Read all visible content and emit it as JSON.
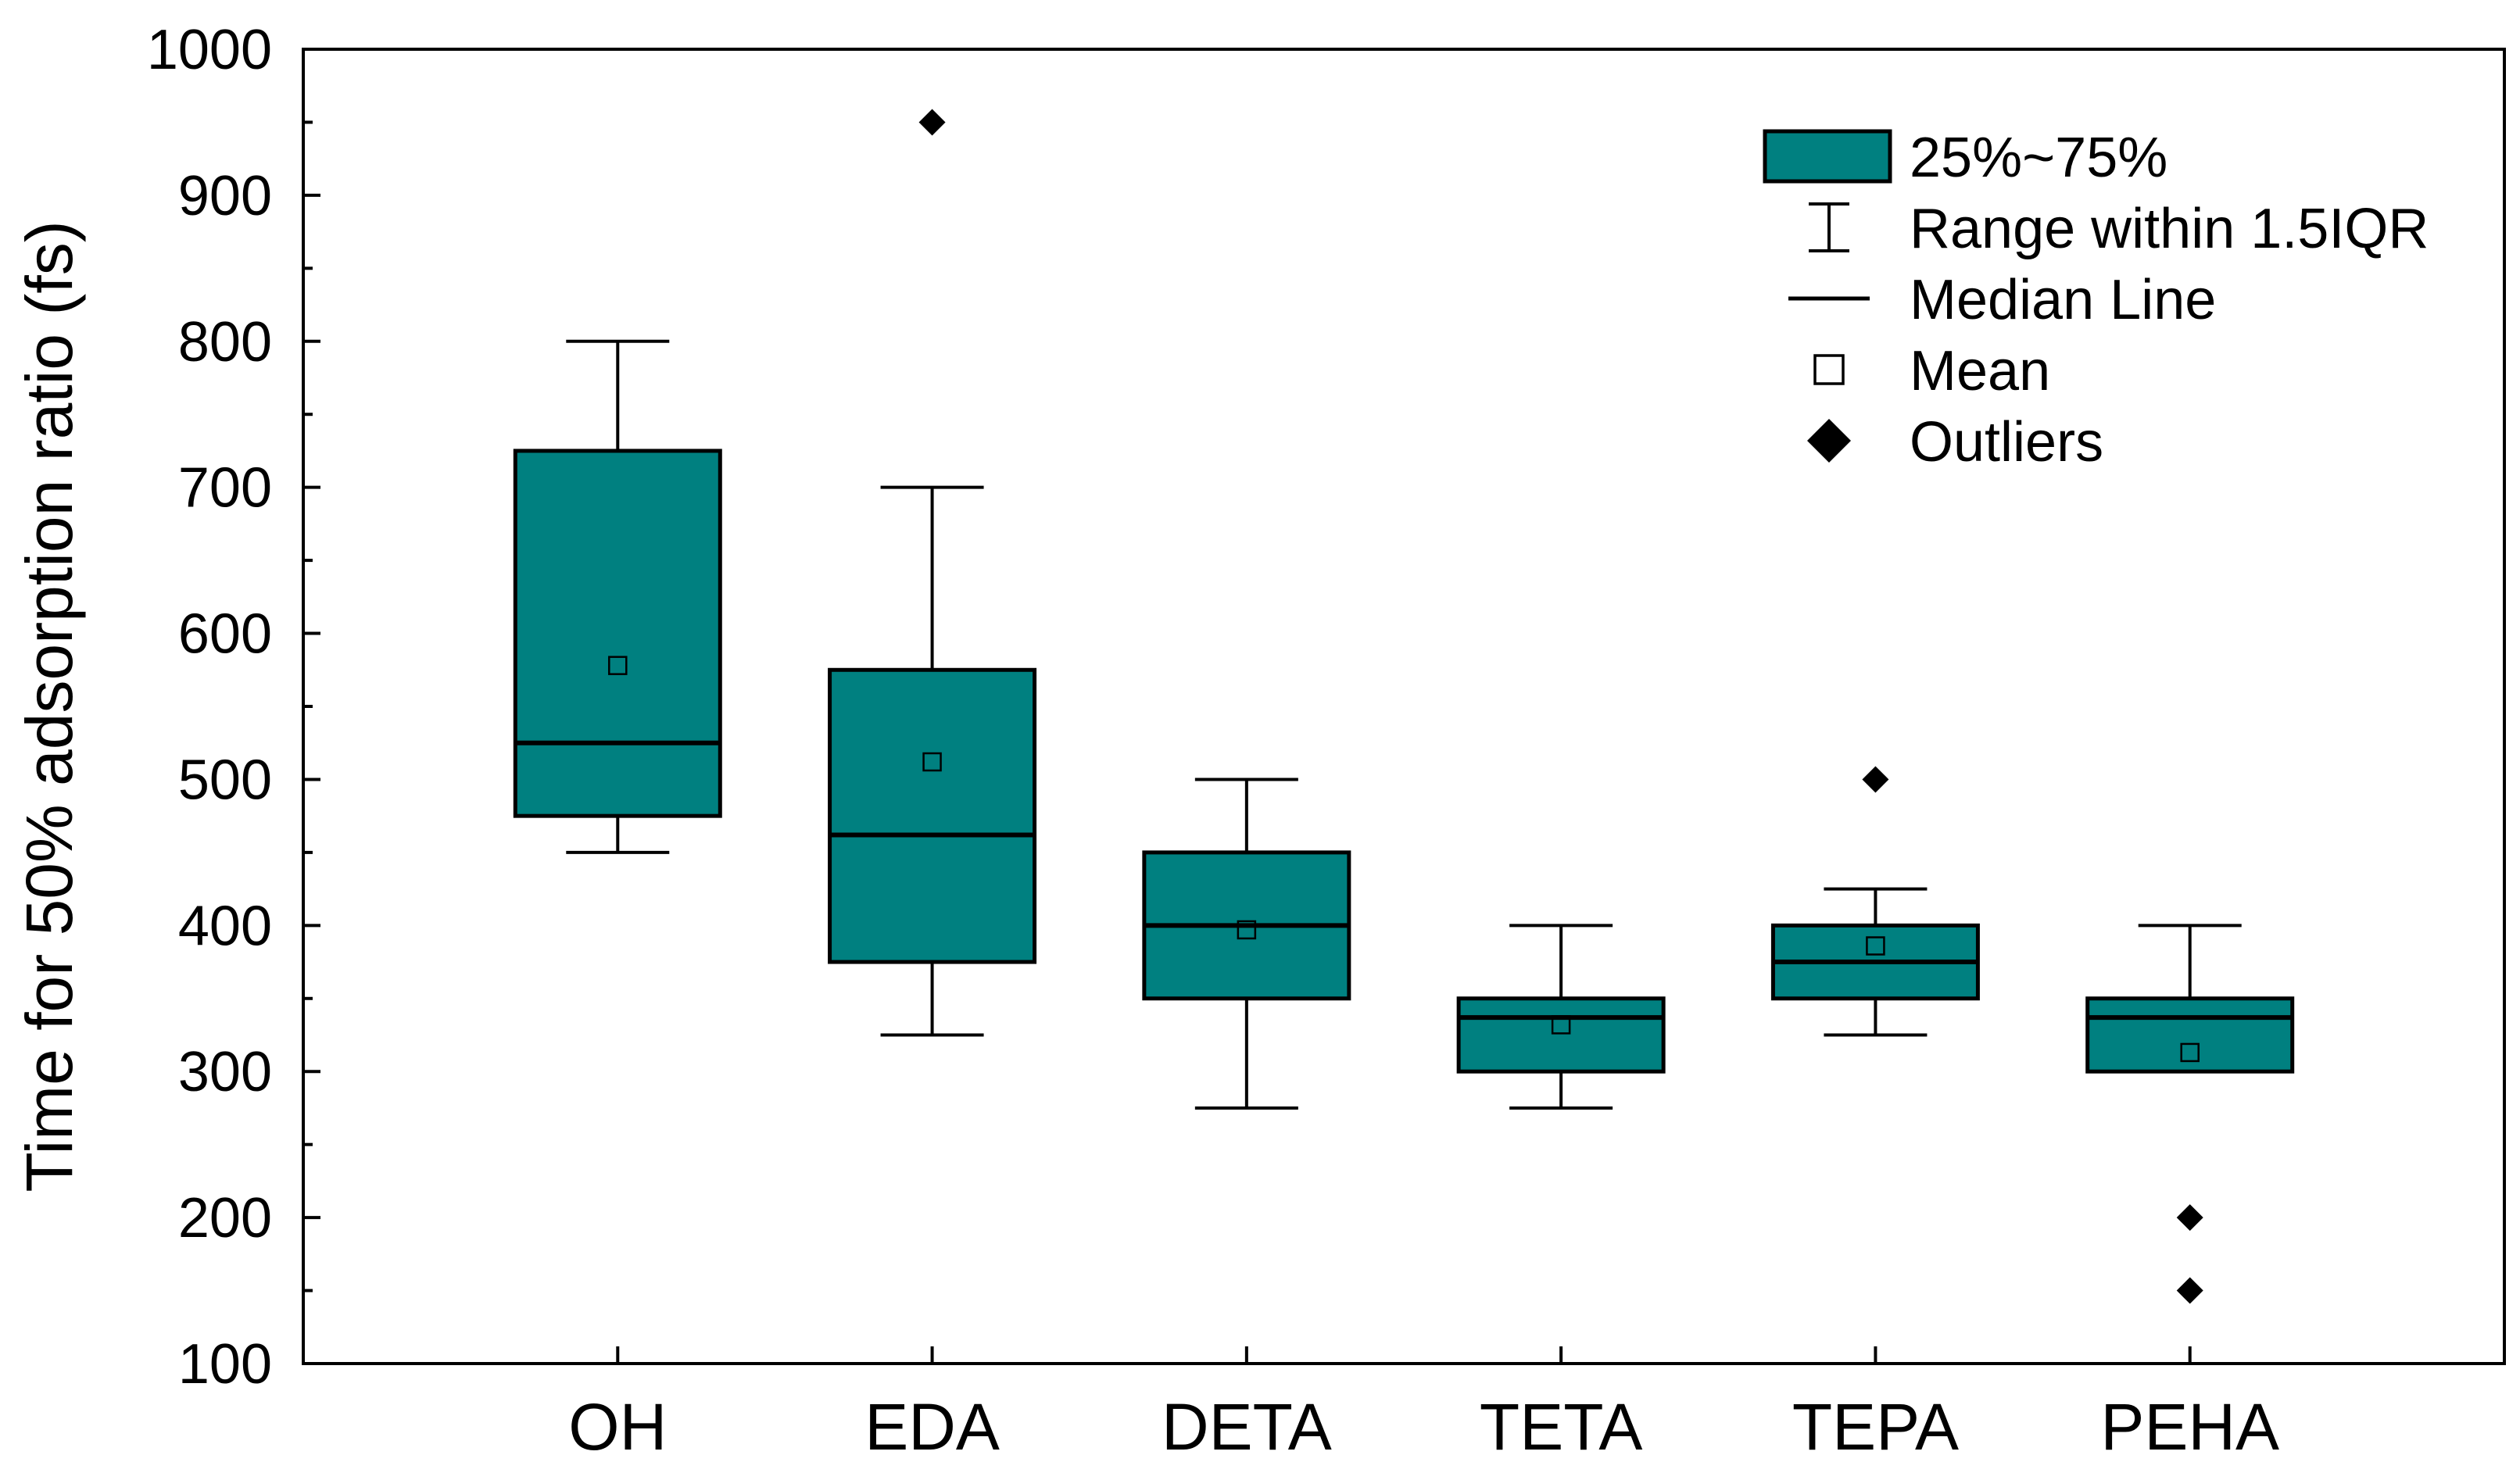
{
  "chart_data": {
    "type": "box",
    "title": "",
    "xlabel": "",
    "ylabel": "Time for 50% adsorption ratio (fs)",
    "ylim": [
      100,
      1000
    ],
    "yticks": [
      100,
      200,
      300,
      400,
      500,
      600,
      700,
      800,
      900,
      1000
    ],
    "categories": [
      "OH",
      "EDA",
      "DETA",
      "TETA",
      "TEPA",
      "PEHA"
    ],
    "box_color": "#008080",
    "series": [
      {
        "name": "OH",
        "q1": 475,
        "q3": 725,
        "median": 525,
        "mean": 578,
        "whisker_low": 450,
        "whisker_high": 800,
        "outliers": []
      },
      {
        "name": "EDA",
        "q1": 375,
        "q3": 575,
        "median": 462,
        "mean": 512,
        "whisker_low": 325,
        "whisker_high": 700,
        "outliers": [
          950
        ]
      },
      {
        "name": "DETA",
        "q1": 350,
        "q3": 450,
        "median": 400,
        "mean": 397,
        "whisker_low": 275,
        "whisker_high": 500,
        "outliers": []
      },
      {
        "name": "TETA",
        "q1": 300,
        "q3": 350,
        "median": 337,
        "mean": 332,
        "whisker_low": 275,
        "whisker_high": 400,
        "outliers": []
      },
      {
        "name": "TEPA",
        "q1": 350,
        "q3": 400,
        "median": 375,
        "mean": 386,
        "whisker_low": 325,
        "whisker_high": 425,
        "outliers": [
          500
        ]
      },
      {
        "name": "PEHA",
        "q1": 300,
        "q3": 350,
        "median": 337,
        "mean": 313,
        "whisker_low": 300,
        "whisker_high": 400,
        "outliers": [
          200,
          150
        ]
      }
    ],
    "legend": {
      "position": "top-right",
      "items": [
        {
          "type": "box",
          "label": "25%~75%"
        },
        {
          "type": "whisker",
          "label": "Range within 1.5IQR"
        },
        {
          "type": "median",
          "label": "Median Line"
        },
        {
          "type": "mean",
          "label": "Mean"
        },
        {
          "type": "outlier",
          "label": "Outliers"
        }
      ]
    }
  }
}
